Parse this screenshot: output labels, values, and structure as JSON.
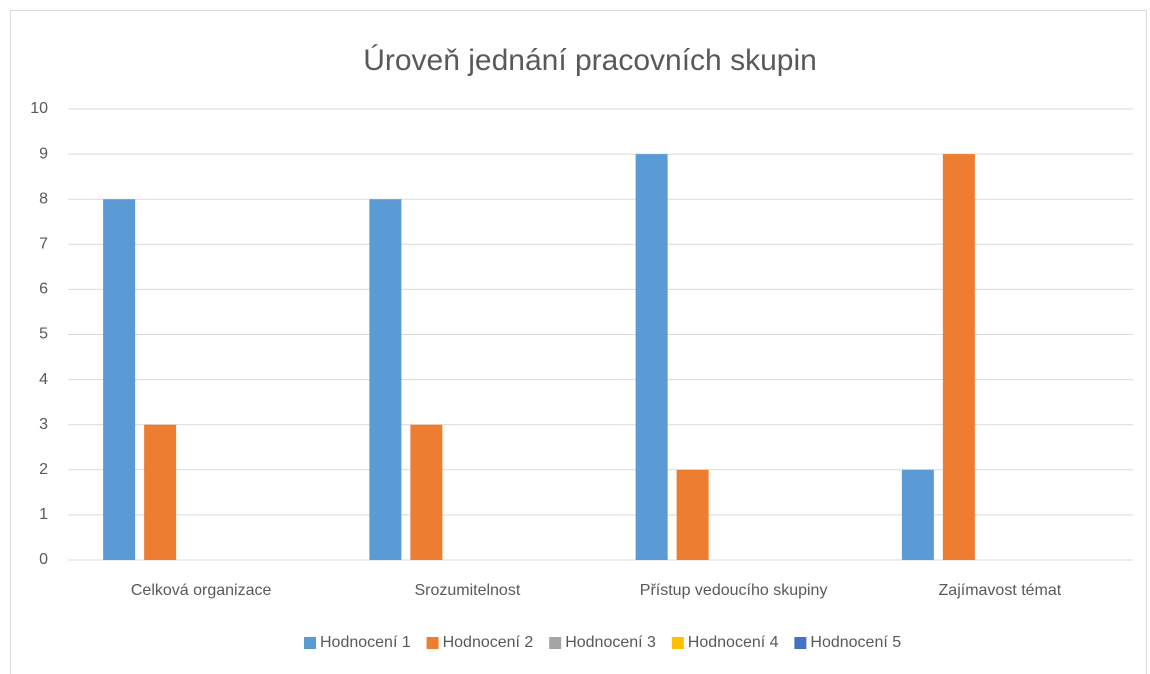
{
  "chart_data": {
    "type": "bar",
    "title": "Úroveň jednání pracovních skupin",
    "categories": [
      "Celková organizace",
      "Srozumitelnost",
      "Přístup vedoucího skupiny",
      "Zajímavost témat"
    ],
    "series": [
      {
        "name": "Hodnocení 1",
        "color": "#5b9bd5",
        "values": [
          8,
          8,
          9,
          2
        ]
      },
      {
        "name": "Hodnocení 2",
        "color": "#ed7d31",
        "values": [
          3,
          3,
          2,
          9
        ]
      },
      {
        "name": "Hodnocení 3",
        "color": "#a5a5a5",
        "values": [
          0,
          0,
          0,
          0
        ]
      },
      {
        "name": "Hodnocení 4",
        "color": "#ffc000",
        "values": [
          0,
          0,
          0,
          0
        ]
      },
      {
        "name": "Hodnocení 5",
        "color": "#4472c4",
        "values": [
          0,
          0,
          0,
          0
        ]
      }
    ],
    "ylim": [
      0,
      10
    ],
    "yticks": [
      0,
      1,
      2,
      3,
      4,
      5,
      6,
      7,
      8,
      9,
      10
    ],
    "grid": true,
    "legend": "bottom"
  }
}
